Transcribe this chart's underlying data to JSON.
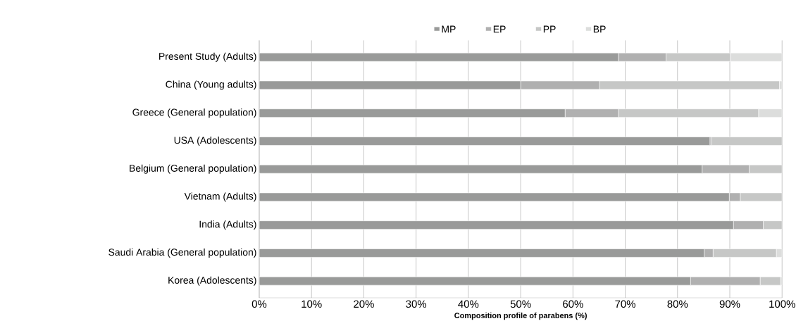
{
  "chart_data": {
    "type": "bar",
    "orientation": "horizontal",
    "stacked": true,
    "xlabel": "Composition profile of parabens (%)",
    "categories": [
      "Present Study (Adults)",
      "China (Young adults)",
      "Greece (General population)",
      "USA (Adolescents)",
      "Belgium (General population)",
      "Vietnam (Adults)",
      "India (Adults)",
      "Saudi Arabia (General population)",
      "Korea (Adolescents)"
    ],
    "series": [
      {
        "name": "MP",
        "color": "#999a99",
        "values": [
          68.7,
          50.0,
          58.5,
          86.2,
          84.7,
          89.9,
          90.7,
          85.1,
          82.5
        ]
      },
      {
        "name": "EP",
        "color": "#b0b0b0",
        "values": [
          9.1,
          15.1,
          10.2,
          0.3,
          9.0,
          2.1,
          5.7,
          1.7,
          13.3
        ]
      },
      {
        "name": "PP",
        "color": "#c6c7c6",
        "values": [
          12.3,
          34.4,
          26.8,
          13.5,
          6.3,
          8.0,
          3.6,
          12.1,
          3.9
        ]
      },
      {
        "name": "BP",
        "color": "#dcdddc",
        "values": [
          9.9,
          0.5,
          4.5,
          0,
          0,
          0,
          0,
          1.1,
          0.3
        ]
      }
    ],
    "xlim": [
      0,
      100
    ],
    "xticks": [
      {
        "value": 0,
        "label": "0%"
      },
      {
        "value": 10,
        "label": "10%"
      },
      {
        "value": 20,
        "label": "20%"
      },
      {
        "value": 30,
        "label": "30%"
      },
      {
        "value": 40,
        "label": "40%"
      },
      {
        "value": 50,
        "label": "50%"
      },
      {
        "value": 60,
        "label": "60%"
      },
      {
        "value": 70,
        "label": "70%"
      },
      {
        "value": 80,
        "label": "80%"
      },
      {
        "value": 90,
        "label": "90%"
      },
      {
        "value": 100,
        "label": "100%"
      }
    ],
    "grid": "x",
    "legend": "top"
  }
}
